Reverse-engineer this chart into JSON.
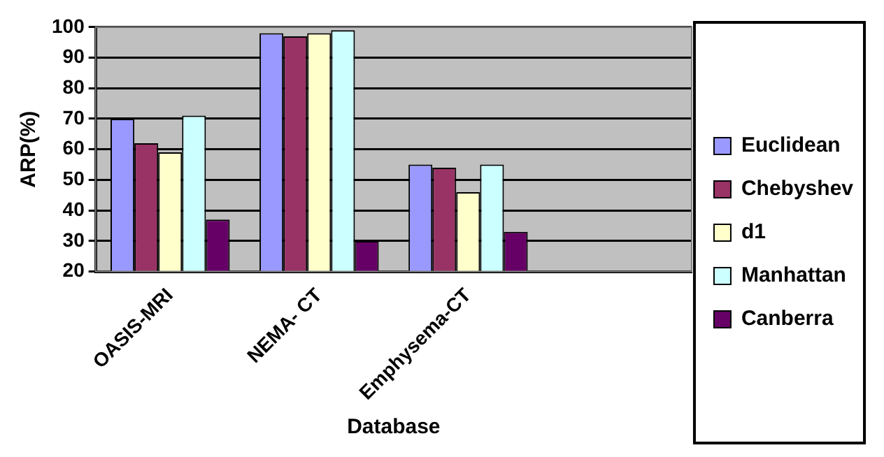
{
  "chart_data": {
    "type": "bar",
    "xlabel": "Database",
    "ylabel": "ARP(%)",
    "categories": [
      "OASIS-MRI",
      "NEMA- CT",
      "Emphysema-CT",
      null
    ],
    "series": [
      {
        "name": "Euclidean",
        "color": "#9999ff",
        "values": [
          70,
          98,
          55,
          null
        ]
      },
      {
        "name": "Chebyshev",
        "color": "#993366",
        "values": [
          62,
          97,
          54,
          null
        ]
      },
      {
        "name": "d1",
        "color": "#ffffcc",
        "values": [
          59,
          98,
          46,
          null
        ]
      },
      {
        "name": "Manhattan",
        "color": "#ccffff",
        "values": [
          71,
          99,
          55,
          null
        ]
      },
      {
        "name": "Canberra",
        "color": "#660066",
        "values": [
          37,
          30,
          33,
          null
        ]
      }
    ],
    "ylim": [
      20,
      100
    ],
    "yticks": [
      20,
      30,
      40,
      50,
      60,
      70,
      80,
      90,
      100
    ],
    "grid": "y",
    "legend": "right"
  }
}
